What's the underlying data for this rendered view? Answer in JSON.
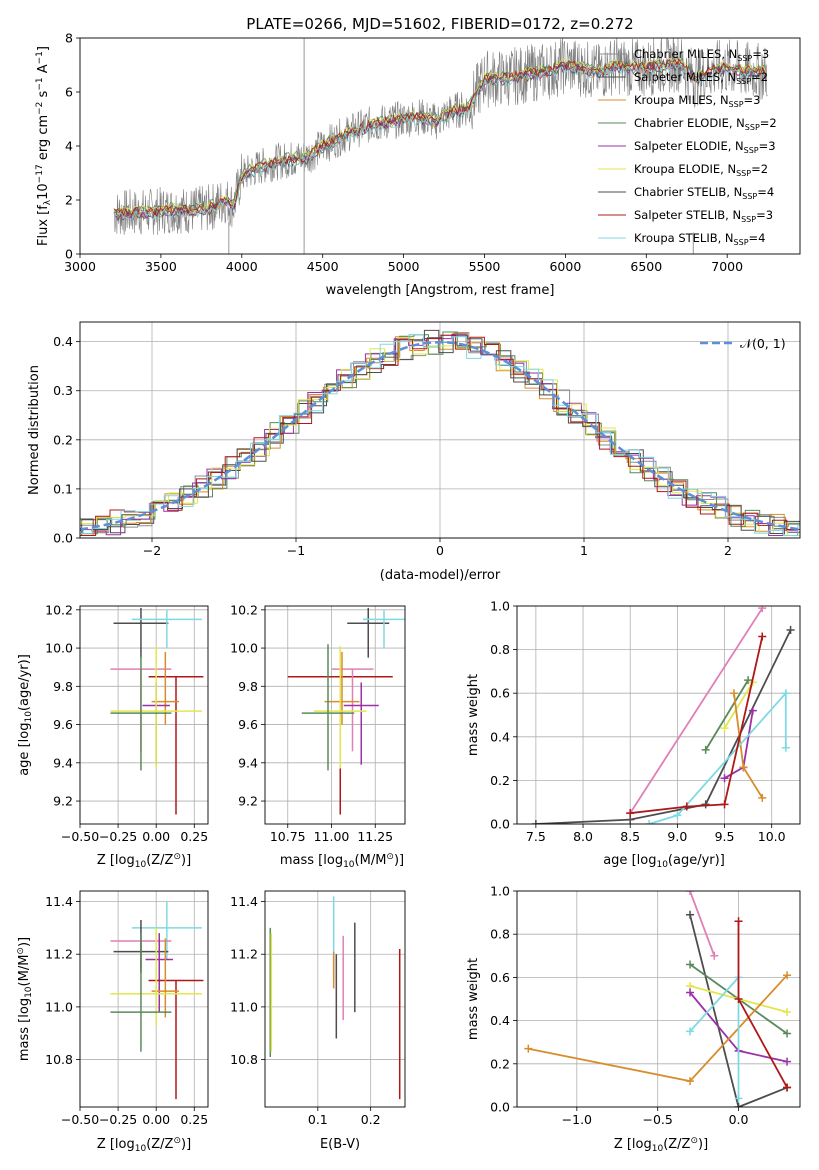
{
  "title": "PLATE=0266, MJD=51602, FIBERID=0172, z=0.272",
  "colors": {
    "chabrier_miles": "#8c8c8c",
    "salpeter_miles": "#4d4d4d",
    "kroupa_miles": "#d98c2b",
    "chabrier_elodie": "#5a8a5a",
    "salpeter_elodie": "#9b30a8",
    "kroupa_elodie": "#e3e64d",
    "chabrier_stelib": "#4d4d4d",
    "salpeter_stelib": "#b01818",
    "kroupa_stelib": "#7fd9e3",
    "pink": "#e07fb8",
    "gauss": "#5b8fd9"
  },
  "legend_spectrum": [
    {
      "label": "Chabrier MILES, N",
      "sub": "SSP",
      "tail": "=3",
      "color": "#8c8c8c"
    },
    {
      "label": "Salpeter MILES, N",
      "sub": "SSP",
      "tail": "=2",
      "color": "#4d4d4d"
    },
    {
      "label": "Kroupa MILES, N",
      "sub": "SSP",
      "tail": "=3",
      "color": "#d98c2b"
    },
    {
      "label": "Chabrier ELODIE, N",
      "sub": "SSP",
      "tail": "=2",
      "color": "#5a8a5a"
    },
    {
      "label": "Salpeter ELODIE, N",
      "sub": "SSP",
      "tail": "=3",
      "color": "#9b30a8"
    },
    {
      "label": "Kroupa ELODIE, N",
      "sub": "SSP",
      "tail": "=2",
      "color": "#e3e64d"
    },
    {
      "label": "Chabrier STELIB, N",
      "sub": "SSP",
      "tail": "=4",
      "color": "#4d4d4d"
    },
    {
      "label": "Salpeter STELIB, N",
      "sub": "SSP",
      "tail": "=3",
      "color": "#b01818"
    },
    {
      "label": "Kroupa STELIB, N",
      "sub": "SSP",
      "tail": "=4",
      "color": "#7fd9e3"
    }
  ],
  "legend_gauss": "𝒩(0, 1)",
  "chart_data": [
    {
      "id": "spectrum",
      "type": "line",
      "xlabel": "wavelength [Angstrom, rest frame]",
      "ylabel_parts": [
        "Flux [f",
        "λ",
        "10",
        "−17",
        " erg cm",
        "−2",
        " s",
        "−1",
        " A",
        "−1",
        "]"
      ],
      "xlim": [
        3000,
        7450
      ],
      "ylim": [
        0,
        8
      ],
      "xticks": [
        3000,
        3500,
        4000,
        4500,
        5000,
        5500,
        6000,
        6500,
        7000
      ],
      "yticks": [
        0,
        2,
        4,
        6,
        8
      ],
      "model_x": [
        3210,
        3400,
        3500,
        3600,
        3700,
        3800,
        3900,
        3950,
        4000,
        4100,
        4200,
        4300,
        4400,
        4500,
        4600,
        4700,
        4800,
        4900,
        5000,
        5100,
        5200,
        5300,
        5400,
        5500,
        5600,
        5700,
        5800,
        5900,
        6000,
        6100,
        6200,
        6300,
        6400,
        6500,
        6600,
        6700,
        6800,
        6900,
        7000,
        7100,
        7250
      ],
      "model_y": [
        1.5,
        1.55,
        1.6,
        1.65,
        1.6,
        1.7,
        2.0,
        1.8,
        2.9,
        3.2,
        3.4,
        3.5,
        3.6,
        4.0,
        4.3,
        4.6,
        4.8,
        4.9,
        5.0,
        5.1,
        4.9,
        5.3,
        5.4,
        6.5,
        6.5,
        6.6,
        6.7,
        6.8,
        7.0,
        6.9,
        6.7,
        7.0,
        6.9,
        6.9,
        7.0,
        7.1,
        6.5,
        6.8,
        6.9,
        6.8,
        6.7
      ],
      "data_range": [
        3210,
        7250
      ]
    },
    {
      "id": "residuals",
      "type": "histogram",
      "xlabel": "(data-model)/error",
      "ylabel": "Normed distribution",
      "xlim": [
        -2.5,
        2.5
      ],
      "ylim": [
        0,
        0.44
      ],
      "xticks": [
        -2,
        -1,
        0,
        1,
        2
      ],
      "xtick_labels": [
        "−2",
        "−1",
        "0",
        "1",
        "2"
      ],
      "yticks": [
        0.0,
        0.1,
        0.2,
        0.3,
        0.4
      ],
      "bin_width": 0.1,
      "series": [
        {
          "name": "Chabrier MILES",
          "color": "#8c8c8c",
          "offset": 0.0
        },
        {
          "name": "Salpeter MILES",
          "color": "#4d4d4d",
          "offset": 0.012
        },
        {
          "name": "Kroupa MILES",
          "color": "#d98c2b",
          "offset": -0.01
        },
        {
          "name": "Chabrier ELODIE",
          "color": "#5a8a5a",
          "offset": 0.02
        },
        {
          "name": "Salpeter ELODIE",
          "color": "#9b30a8",
          "offset": -0.018
        },
        {
          "name": "Kroupa ELODIE",
          "color": "#e3e64d",
          "offset": 0.015
        },
        {
          "name": "Chabrier STELIB",
          "color": "#4d4d4d",
          "offset": -0.008
        },
        {
          "name": "Salpeter STELIB",
          "color": "#b01818",
          "offset": 0.008
        },
        {
          "name": "Kroupa STELIB",
          "color": "#7fd9e3",
          "offset": -0.015
        }
      ]
    },
    {
      "id": "age_vs_Z",
      "type": "errorbar",
      "xlabel_parts": [
        "Z [log",
        "10",
        "(Z/Z",
        "⊙",
        ")]"
      ],
      "ylabel_parts": [
        "age  [log",
        "10",
        "(age/yr)]"
      ],
      "xlim": [
        -0.5,
        0.34
      ],
      "ylim": [
        9.08,
        10.22
      ],
      "xticks": [
        -0.5,
        -0.25,
        0.0,
        0.25
      ],
      "xtick_labels": [
        "−0.50",
        "−0.25",
        "0.00",
        "0.25"
      ],
      "yticks": [
        9.2,
        9.4,
        9.6,
        9.8,
        10.0,
        10.2
      ],
      "points": [
        {
          "x": -0.1,
          "y": 10.13,
          "xerr": 0.18,
          "yerr": [
            0.18,
            0.08
          ],
          "color": "#4d4d4d"
        },
        {
          "x": 0.07,
          "y": 10.15,
          "xerr": 0.23,
          "yerr": [
            0.15,
            0.05
          ],
          "color": "#7fd9e3"
        },
        {
          "x": -0.1,
          "y": 9.89,
          "xerr": 0.2,
          "yerr": [
            0.43,
            0.0
          ],
          "color": "#e07fb8"
        },
        {
          "x": 0.13,
          "y": 9.85,
          "xerr": 0.18,
          "yerr": [
            0.72,
            0.0
          ],
          "color": "#b01818"
        },
        {
          "x": 0.06,
          "y": 9.72,
          "xerr": 0.09,
          "yerr": [
            0.12,
            0.26
          ],
          "color": "#d98c2b"
        },
        {
          "x": 0.0,
          "y": 9.7,
          "xerr": 0.09,
          "yerr": [
            0.31,
            0.12
          ],
          "color": "#9b30a8"
        },
        {
          "x": 0.0,
          "y": 9.67,
          "xerr": 0.3,
          "yerr": [
            0.3,
            0.34
          ],
          "color": "#e3e64d"
        },
        {
          "x": -0.1,
          "y": 9.66,
          "xerr": 0.2,
          "yerr": [
            0.3,
            0.3
          ],
          "color": "#5a8a5a"
        }
      ]
    },
    {
      "id": "age_vs_mass",
      "type": "errorbar",
      "xlabel_parts": [
        "mass [log",
        "10",
        "(M/M",
        "⊙",
        ")]"
      ],
      "xlim": [
        10.62,
        11.42
      ],
      "ylim": [
        9.08,
        10.22
      ],
      "xticks": [
        10.75,
        11.0,
        11.25
      ],
      "xtick_labels": [
        "10.75",
        "11.00",
        "11.25"
      ],
      "yticks": [
        9.2,
        9.4,
        9.6,
        9.8,
        10.0,
        10.2
      ],
      "points": [
        {
          "x": 11.21,
          "y": 10.13,
          "xerr": 0.12,
          "yerr": [
            0.18,
            0.08
          ],
          "color": "#4d4d4d"
        },
        {
          "x": 11.3,
          "y": 10.15,
          "xerr": 0.12,
          "yerr": [
            0.15,
            0.05
          ],
          "color": "#7fd9e3"
        },
        {
          "x": 11.05,
          "y": 9.85,
          "xerr": 0.3,
          "yerr": [
            0.72,
            0.0
          ],
          "color": "#b01818"
        },
        {
          "x": 11.12,
          "y": 9.89,
          "xerr": 0.12,
          "yerr": [
            0.43,
            0.0
          ],
          "color": "#e07fb8"
        },
        {
          "x": 11.06,
          "y": 9.72,
          "xerr": 0.1,
          "yerr": [
            0.12,
            0.26
          ],
          "color": "#d98c2b"
        },
        {
          "x": 11.17,
          "y": 9.7,
          "xerr": 0.1,
          "yerr": [
            0.31,
            0.12
          ],
          "color": "#9b30a8"
        },
        {
          "x": 11.05,
          "y": 9.67,
          "xerr": 0.15,
          "yerr": [
            0.3,
            0.34
          ],
          "color": "#e3e64d"
        },
        {
          "x": 10.98,
          "y": 9.66,
          "xerr": 0.15,
          "yerr": [
            0.3,
            0.36
          ],
          "color": "#5a8a5a"
        }
      ]
    },
    {
      "id": "weight_vs_age",
      "type": "line",
      "xlabel_parts": [
        "age  [log",
        "10",
        "(age/yr)]"
      ],
      "ylabel": "mass weight",
      "xlim": [
        7.3,
        10.3
      ],
      "ylim": [
        0,
        1
      ],
      "xticks": [
        7.5,
        8.0,
        8.5,
        9.0,
        9.5,
        10.0
      ],
      "xtick_labels": [
        "7.5",
        "8.0",
        "8.5",
        "9.0",
        "9.5",
        "10.0"
      ],
      "yticks": [
        0.0,
        0.2,
        0.4,
        0.6,
        0.8,
        1.0
      ],
      "series": [
        {
          "color": "#e07fb8",
          "x": [
            8.5,
            9.9
          ],
          "y": [
            0.05,
            0.99
          ]
        },
        {
          "color": "#4d4d4d",
          "x": [
            7.5,
            8.5,
            9.3,
            10.2
          ],
          "y": [
            0.0,
            0.02,
            0.09,
            0.89
          ]
        },
        {
          "color": "#5a8a5a",
          "x": [
            9.3,
            9.75
          ],
          "y": [
            0.34,
            0.66
          ]
        },
        {
          "color": "#e3e64d",
          "x": [
            9.5,
            9.8
          ],
          "y": [
            0.44,
            0.65
          ]
        },
        {
          "color": "#9b30a8",
          "x": [
            9.5,
            9.7,
            9.8
          ],
          "y": [
            0.21,
            0.26,
            0.52
          ]
        },
        {
          "color": "#d98c2b",
          "x": [
            9.6,
            9.7,
            9.9
          ],
          "y": [
            0.6,
            0.26,
            0.12
          ]
        },
        {
          "color": "#7fd9e3",
          "x": [
            8.7,
            9.0,
            10.15,
            10.15
          ],
          "y": [
            0.0,
            0.04,
            0.6,
            0.35
          ]
        },
        {
          "color": "#b01818",
          "x": [
            8.5,
            9.1,
            9.5,
            9.9
          ],
          "y": [
            0.05,
            0.08,
            0.09,
            0.86
          ]
        }
      ]
    },
    {
      "id": "mass_vs_Z",
      "type": "errorbar",
      "xlabel_parts": [
        "Z [log",
        "10",
        "(Z/Z",
        "⊙",
        ")]"
      ],
      "ylabel_parts": [
        "mass [log",
        "10",
        "(M/M",
        "⊙",
        ")]"
      ],
      "xlim": [
        -0.5,
        0.34
      ],
      "ylim": [
        10.62,
        11.44
      ],
      "xticks": [
        -0.5,
        -0.25,
        0.0,
        0.25
      ],
      "xtick_labels": [
        "−0.50",
        "−0.25",
        "0.00",
        "0.25"
      ],
      "yticks": [
        10.8,
        11.0,
        11.2,
        11.4
      ],
      "points": [
        {
          "x": 0.07,
          "y": 11.3,
          "xerr": 0.23,
          "yerr": [
            0.12,
            0.1
          ],
          "color": "#7fd9e3"
        },
        {
          "x": -0.1,
          "y": 11.25,
          "xerr": 0.2,
          "yerr": [
            0.1,
            0.0
          ],
          "color": "#e07fb8"
        },
        {
          "x": -0.1,
          "y": 11.21,
          "xerr": 0.18,
          "yerr": [
            0.08,
            0.12
          ],
          "color": "#4d4d4d"
        },
        {
          "x": 0.02,
          "y": 11.18,
          "xerr": 0.09,
          "yerr": [
            0.2,
            0.1
          ],
          "color": "#9b30a8"
        },
        {
          "x": 0.13,
          "y": 11.1,
          "xerr": 0.18,
          "yerr": [
            0.45,
            0.0
          ],
          "color": "#b01818"
        },
        {
          "x": 0.06,
          "y": 11.06,
          "xerr": 0.09,
          "yerr": [
            0.1,
            0.2
          ],
          "color": "#d98c2b"
        },
        {
          "x": 0.0,
          "y": 11.05,
          "xerr": 0.3,
          "yerr": [
            0.12,
            0.25
          ],
          "color": "#e3e64d"
        },
        {
          "x": -0.1,
          "y": 10.98,
          "xerr": 0.2,
          "yerr": [
            0.15,
            0.3
          ],
          "color": "#5a8a5a"
        }
      ]
    },
    {
      "id": "mass_vs_ebv",
      "type": "errorbar",
      "xlabel": "E(B-V)",
      "xlim": [
        0.0,
        0.265
      ],
      "ylim": [
        10.62,
        11.44
      ],
      "xticks": [
        0.1,
        0.2
      ],
      "xtick_labels": [
        "0.1",
        "0.2"
      ],
      "yticks": [
        10.8,
        11.0,
        11.2,
        11.4
      ],
      "points": [
        {
          "x": 0.01,
          "y": 11.05,
          "yerr": [
            0.24,
            0.25
          ],
          "color": "#5a8a5a"
        },
        {
          "x": 0.012,
          "y": 11.05,
          "yerr": [
            0.22,
            0.23
          ],
          "color": "#e3e64d"
        },
        {
          "x": 0.13,
          "y": 11.25,
          "yerr": [
            0.15,
            0.17
          ],
          "color": "#7fd9e3"
        },
        {
          "x": 0.135,
          "y": 11.1,
          "yerr": [
            0.22,
            0.1
          ],
          "color": "#4d4d4d"
        },
        {
          "x": 0.148,
          "y": 11.1,
          "yerr": [
            0.15,
            0.17
          ],
          "color": "#e07fb8"
        },
        {
          "x": 0.17,
          "y": 11.15,
          "yerr": [
            0.17,
            0.17
          ],
          "color": "#4d4d4d"
        },
        {
          "x": 0.255,
          "y": 10.95,
          "yerr": [
            0.3,
            0.27
          ],
          "color": "#b01818"
        },
        {
          "x": 0.13,
          "y": 11.15,
          "yerr": [
            0.08,
            0.06
          ],
          "color": "#d98c2b"
        }
      ]
    },
    {
      "id": "weight_vs_Z",
      "type": "line",
      "xlabel_parts": [
        "Z [log",
        "10",
        "(Z/Z",
        "⊙",
        ")]"
      ],
      "ylabel": "mass weight",
      "xlim": [
        -1.37,
        0.38
      ],
      "ylim": [
        0,
        1
      ],
      "xticks": [
        -1.0,
        -0.5,
        0.0
      ],
      "xtick_labels": [
        "−1.0",
        "−0.5",
        "0.0"
      ],
      "yticks": [
        0.0,
        0.2,
        0.4,
        0.6,
        0.8,
        1.0
      ],
      "series": [
        {
          "color": "#e07fb8",
          "x": [
            -0.3,
            -0.15
          ],
          "y": [
            1.0,
            0.7
          ]
        },
        {
          "color": "#4d4d4d",
          "x": [
            -0.3,
            -0.0,
            0.3
          ],
          "y": [
            0.89,
            0.0,
            0.09
          ]
        },
        {
          "color": "#5a8a5a",
          "x": [
            -0.3,
            0.3
          ],
          "y": [
            0.66,
            0.34
          ]
        },
        {
          "color": "#e3e64d",
          "x": [
            -0.3,
            0.3
          ],
          "y": [
            0.56,
            0.44
          ]
        },
        {
          "color": "#9b30a8",
          "x": [
            -0.3,
            0.0,
            0.3
          ],
          "y": [
            0.53,
            0.26,
            0.21
          ]
        },
        {
          "color": "#d98c2b",
          "x": [
            -1.3,
            -0.3,
            0.3
          ],
          "y": [
            0.27,
            0.12,
            0.61
          ]
        },
        {
          "color": "#7fd9e3",
          "x": [
            -0.3,
            0.0,
            0.0
          ],
          "y": [
            0.35,
            0.6,
            0.04
          ]
        },
        {
          "color": "#b01818",
          "x": [
            0.0,
            0.0,
            0.3
          ],
          "y": [
            0.86,
            0.5,
            0.09
          ]
        }
      ]
    }
  ]
}
